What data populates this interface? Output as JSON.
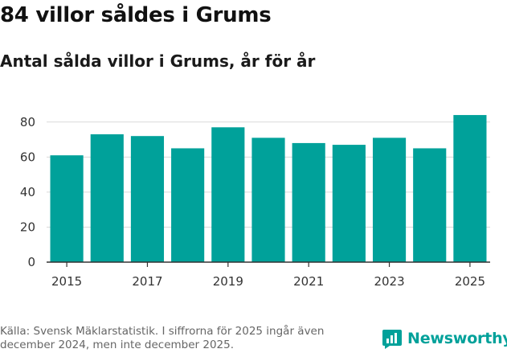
{
  "header": {
    "title": "84 villor såldes i Grums",
    "subtitle": "Antal sålda villor i Grums, år för år"
  },
  "footer": {
    "source": "Källa: Svensk Mäklarstatistik. I siffrorna för 2025 ingår även december 2024, men inte december 2025.",
    "brand": "Newsworthy"
  },
  "colors": {
    "bar": "#00a19a",
    "brand": "#00a19a",
    "grid": "#d9d9d9",
    "axis": "#333333"
  },
  "icons": {
    "brand_logo": "bar-chart-speech-bubble-icon"
  },
  "chart_data": {
    "type": "bar",
    "title": "Antal sålda villor i Grums, år för år",
    "xlabel": "",
    "ylabel": "",
    "categories": [
      "2015",
      "2016",
      "2017",
      "2018",
      "2019",
      "2020",
      "2021",
      "2022",
      "2023",
      "2024",
      "2025"
    ],
    "values": [
      61,
      73,
      72,
      65,
      77,
      71,
      68,
      67,
      71,
      65,
      84
    ],
    "x_tick_labels": [
      "2015",
      "2017",
      "2019",
      "2021",
      "2023",
      "2025"
    ],
    "y_ticks": [
      0,
      20,
      40,
      60,
      80
    ],
    "ylim": [
      0,
      90
    ],
    "grid": true,
    "legend": "none"
  }
}
